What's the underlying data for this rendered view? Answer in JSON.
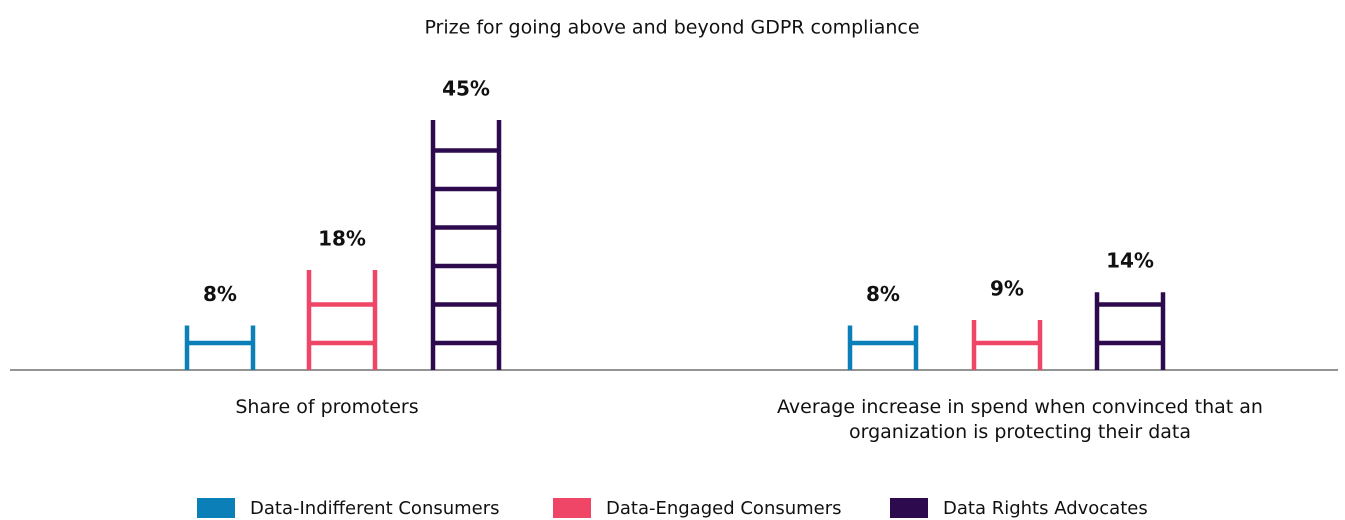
{
  "chart_data": {
    "type": "bar",
    "title": "Prize for going above and beyond GDPR compliance",
    "categories": [
      "Share of promoters",
      "Average increase in spend when convinced that an organization is protecting their data"
    ],
    "series": [
      {
        "name": "Data-Indifferent Consumers",
        "color": "#0a7fb8",
        "values": [
          8,
          8
        ],
        "value_labels": [
          "8%",
          "8%"
        ]
      },
      {
        "name": "Data-Engaged Consumers",
        "color": "#ef4566",
        "values": [
          18,
          9
        ],
        "value_labels": [
          "18%",
          "9%"
        ]
      },
      {
        "name": "Data Rights Advocates",
        "color": "#2d0a4e",
        "values": [
          45,
          14
        ],
        "value_labels": [
          "45%",
          "14%"
        ]
      }
    ]
  }
}
